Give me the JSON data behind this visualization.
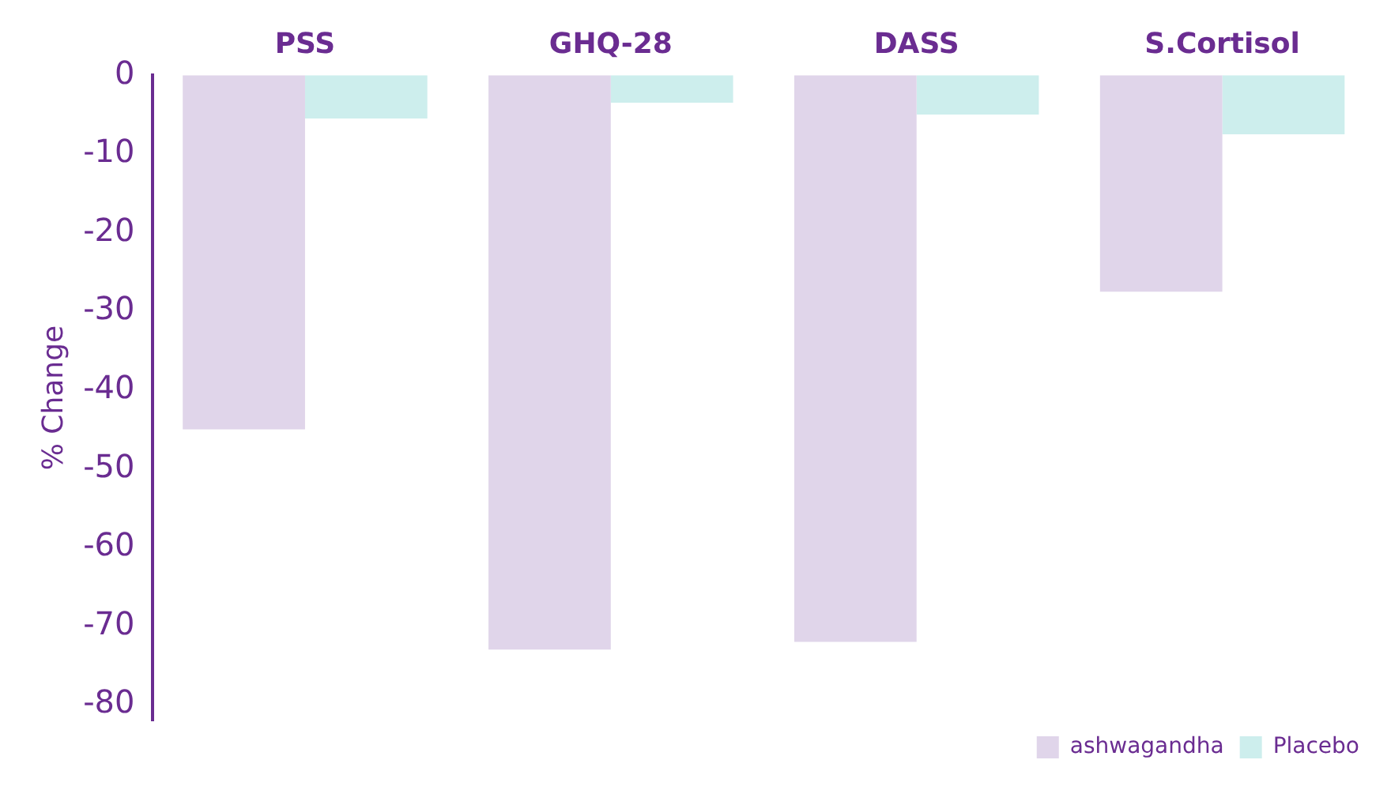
{
  "chart_data": {
    "type": "bar",
    "ylabel": "% Change",
    "categories": [
      "PSS",
      "GHQ-28",
      "DASS",
      "S.Cortisol"
    ],
    "series": [
      {
        "name": "ashwagandha",
        "color": "#e0d5ea",
        "values": [
          -45,
          -73,
          -72,
          -27.5
        ]
      },
      {
        "name": "Placebo",
        "color": "#cdeeed",
        "values": [
          -5.5,
          -3.5,
          -5,
          -7.5
        ]
      }
    ],
    "ylim": [
      -82,
      0
    ],
    "yticks": [
      0,
      -10,
      -20,
      -30,
      -40,
      -50,
      -60,
      -70,
      -80
    ],
    "grid": false,
    "legend": "bottom right"
  }
}
